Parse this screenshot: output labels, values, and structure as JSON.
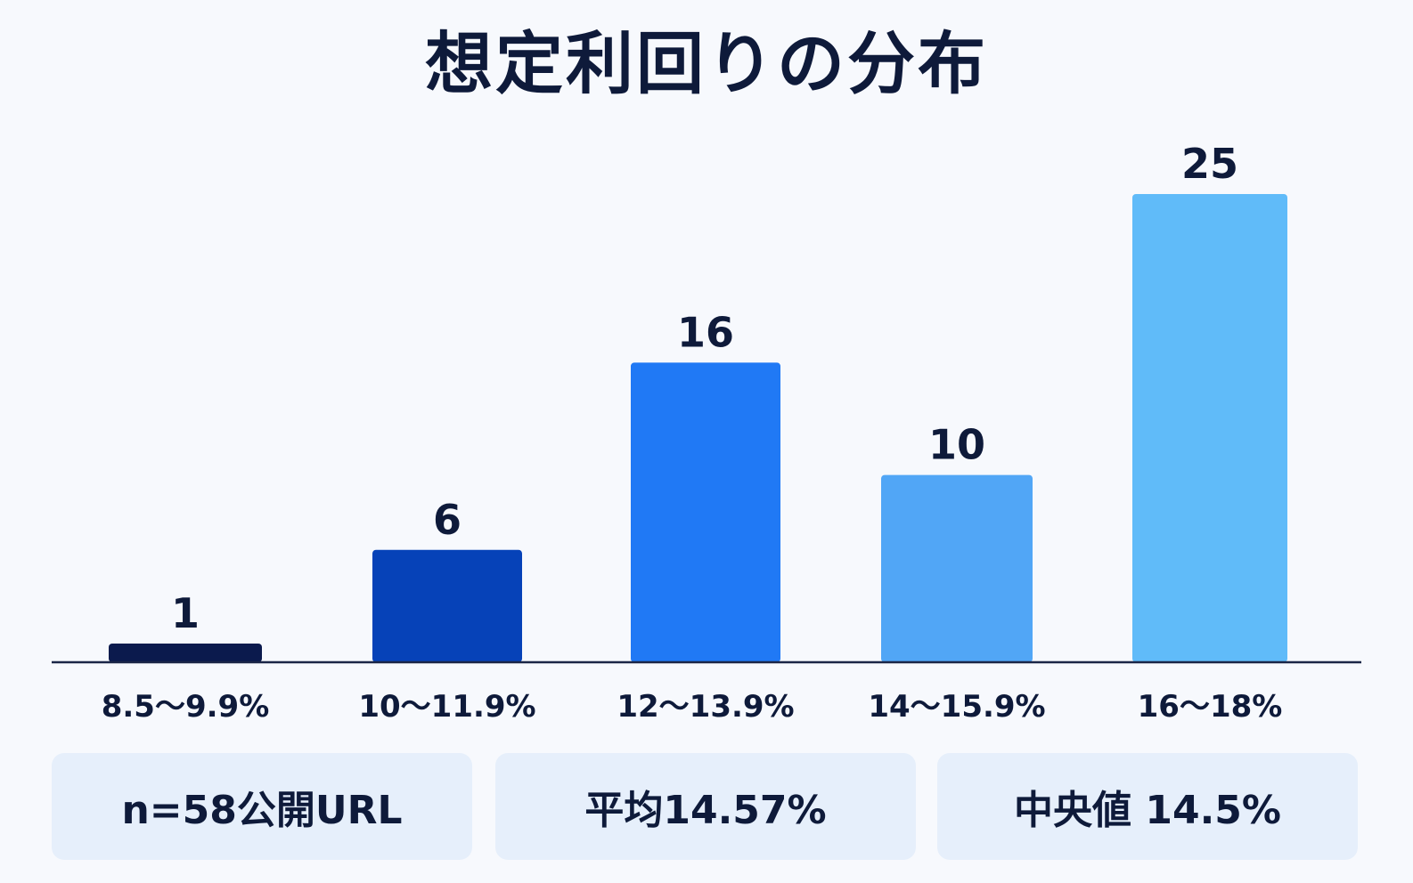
{
  "title": "想定利回りの分布",
  "chart_data": {
    "type": "bar",
    "title": "想定利回りの分布",
    "categories": [
      "8.5〜9.9%",
      "10〜11.9%",
      "12〜13.9%",
      "14〜15.9%",
      "16〜18%"
    ],
    "values": [
      1,
      6,
      16,
      10,
      25
    ],
    "colors": [
      "#0b1a4d",
      "#0642b8",
      "#2079f5",
      "#51a6f6",
      "#60bbf9"
    ],
    "xlabel": "",
    "ylabel": "",
    "ylim": [
      0,
      25
    ],
    "grid": false,
    "legend": "none"
  },
  "stats": {
    "sample": "n=58公開URL",
    "mean": "平均14.57%",
    "median": "中央値 14.5%"
  }
}
